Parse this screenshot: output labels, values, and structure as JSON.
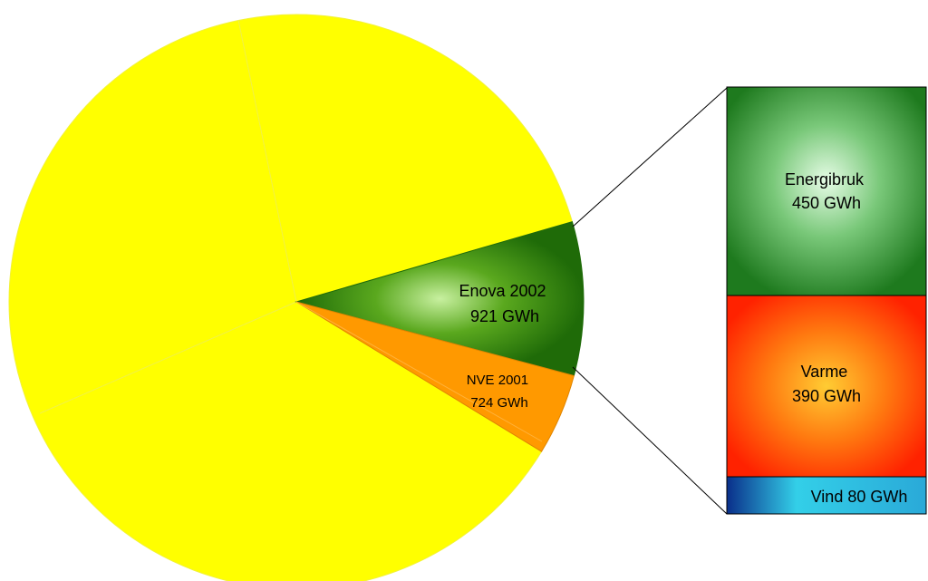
{
  "chart_data": {
    "type": "pie",
    "title": "",
    "pie": {
      "slices": [
        {
          "value": 921,
          "color": "#2e7d00",
          "label_lines": [
            "Enova 2002",
            "921 GWh"
          ]
        },
        {
          "value": 724,
          "color": "#ff9900",
          "label_lines": [
            "NVE 2001",
            "724 GWh"
          ]
        }
      ]
    },
    "breakdown": {
      "of": "Enova 2002",
      "type": "stacked-bar",
      "segments": [
        {
          "name": "Energibruk",
          "value": 450,
          "unit": "GWh",
          "label_lines": [
            "Energibruk",
            "450 GWh"
          ],
          "color": "#1e7d1e"
        },
        {
          "name": "Varme",
          "value": 390,
          "unit": "GWh",
          "label_lines": [
            "Varme",
            "390 GWh"
          ],
          "color": "#ff3300"
        },
        {
          "name": "Vind",
          "value": 80,
          "unit": "GWh",
          "label_lines": [
            "Vind 80 GWh"
          ],
          "color": "#1a9fc9"
        }
      ]
    },
    "colors": {
      "remainder": "#ffff00"
    }
  }
}
